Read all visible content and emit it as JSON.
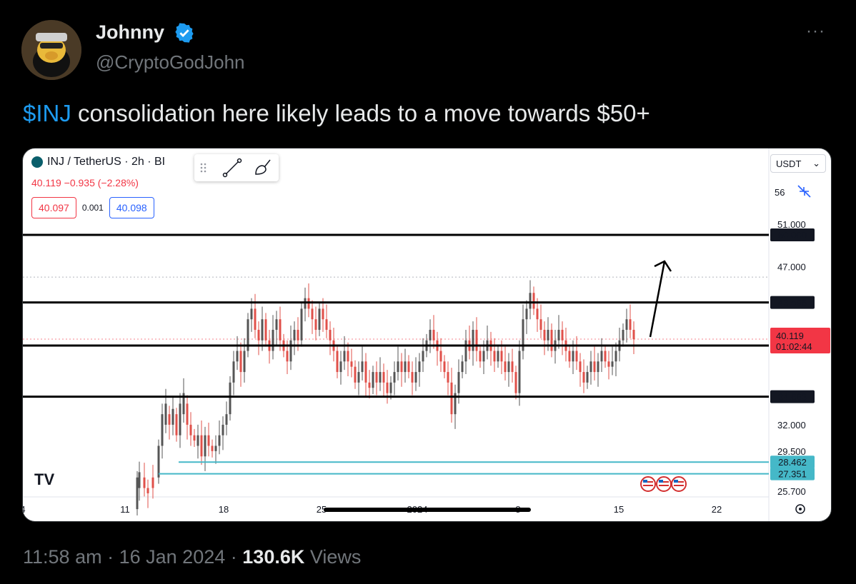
{
  "tweet": {
    "author_name": "Johnny",
    "author_handle": "@CryptoGodJohn",
    "more_label": "···",
    "text_cashtag": "$INJ",
    "text_rest": " consolidation here likely leads to a move towards $50+",
    "time": "11:58 am",
    "date": "16 Jan 2024",
    "views_count": "130.6K",
    "views_label": "Views",
    "separator": "·"
  },
  "chart_header": {
    "symbol": "INJ / TetherUS · 2h · BI",
    "price_change": "40.119  −0.935 (−2.28%)",
    "sell_price": "40.097",
    "spread": "0.001",
    "buy_price": "40.098",
    "currency": "USDT",
    "currency_chevron": "⌄",
    "logo_text": "TV"
  },
  "colors": {
    "up": "#26a69a",
    "down": "#ef5350",
    "candle_up": "#555555",
    "candle_down": "#e0504a",
    "support_line": "#000000",
    "cyan_line": "#45b8c8",
    "current_price_tag": "#f23645"
  },
  "chart_data": {
    "type": "candlestick",
    "x_ticks": [
      "4",
      "11",
      "18",
      "25",
      "2024",
      "8",
      "15",
      "22"
    ],
    "y_ticks": [
      "56",
      "51.000",
      "47.000",
      "32.000",
      "29.500",
      "25.700"
    ],
    "ylim": [
      24.5,
      57.5
    ],
    "horizontal_levels": [
      {
        "label": "50.000",
        "value": 50.0,
        "style": "black"
      },
      {
        "label": "43.596",
        "value": 43.596,
        "style": "black"
      },
      {
        "label": "39.511",
        "value": 39.511,
        "style": "black"
      },
      {
        "label": "34.663",
        "value": 34.663,
        "style": "black"
      },
      {
        "label": "28.462",
        "value": 28.462,
        "style": "cyan"
      },
      {
        "label": "27.351",
        "value": 27.351,
        "style": "cyan"
      }
    ],
    "current_price": {
      "value": "40.119",
      "countdown": "01:02:44"
    },
    "dotted_level": 46.0
  }
}
